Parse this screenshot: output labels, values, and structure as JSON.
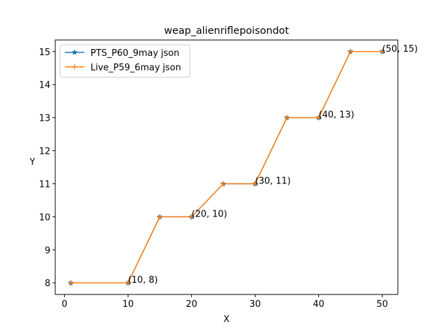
{
  "chart_data": {
    "type": "line",
    "title": "weap_alienriflepoisondot",
    "xlabel": "X",
    "ylabel": "Y",
    "xlim": [
      -1.45,
      52.45
    ],
    "ylim": [
      7.65,
      15.35
    ],
    "xticks": [
      0,
      10,
      20,
      30,
      40,
      50
    ],
    "yticks": [
      8,
      9,
      10,
      11,
      12,
      13,
      14,
      15
    ],
    "grid": false,
    "legend_position": "upper-left",
    "series": [
      {
        "name": "PTS_P60_9may json",
        "color": "#1f77b4",
        "marker": "star",
        "x": [
          1,
          10,
          15,
          20,
          25,
          30,
          35,
          40,
          45,
          50
        ],
        "y": [
          8,
          8,
          10,
          10,
          11,
          11,
          13,
          13,
          15,
          15
        ]
      },
      {
        "name": "Live_P59_6may json",
        "color": "#ff7f0e",
        "marker": "plus",
        "x": [
          1,
          10,
          15,
          20,
          25,
          30,
          35,
          40,
          45,
          50
        ],
        "y": [
          8,
          8,
          10,
          10,
          11,
          11,
          13,
          13,
          15,
          15
        ]
      }
    ],
    "annotations": [
      {
        "text": "(10, 8)",
        "x": 10,
        "y": 8
      },
      {
        "text": "(20, 10)",
        "x": 20,
        "y": 10
      },
      {
        "text": "(30, 11)",
        "x": 30,
        "y": 11
      },
      {
        "text": "(40, 13)",
        "x": 40,
        "y": 13
      },
      {
        "text": "(50, 15)",
        "x": 50,
        "y": 15
      }
    ]
  }
}
